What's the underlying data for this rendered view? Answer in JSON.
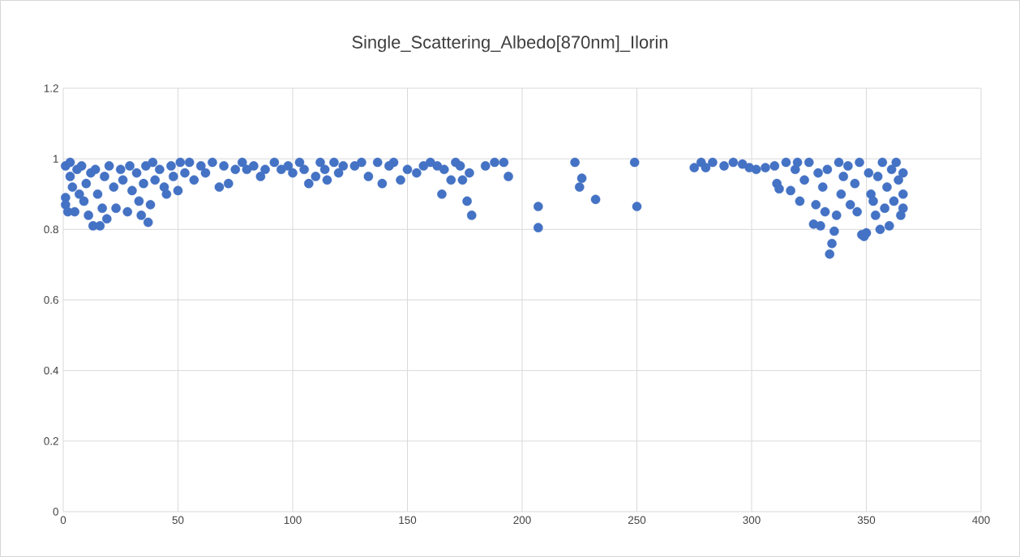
{
  "chart_data": {
    "type": "scatter",
    "title": "Single_Scattering_Albedo[870nm]_Ilorin",
    "xlim": [
      0,
      400
    ],
    "xticks": [
      0,
      50,
      100,
      150,
      200,
      250,
      300,
      350,
      400
    ],
    "ylim": [
      0,
      1.2
    ],
    "yticks": [
      0,
      0.2,
      0.4,
      0.6,
      0.8,
      1,
      1.2
    ],
    "grid": true,
    "marker": "circle",
    "series": [
      {
        "color": "#4472c4",
        "x": [
          1,
          1,
          1,
          2,
          3,
          3,
          4,
          5,
          6,
          7,
          8,
          9,
          10,
          11,
          12,
          13,
          14,
          15,
          16,
          17,
          18,
          19,
          20,
          22,
          23,
          25,
          26,
          28,
          29,
          30,
          32,
          33,
          34,
          35,
          36,
          37,
          38,
          39,
          40,
          42,
          44,
          45,
          47,
          48,
          50,
          51,
          53,
          55,
          57,
          60,
          62,
          65,
          68,
          70,
          72,
          75,
          78,
          80,
          83,
          86,
          88,
          92,
          95,
          98,
          100,
          103,
          105,
          107,
          110,
          112,
          114,
          115,
          118,
          120,
          122,
          127,
          130,
          133,
          137,
          139,
          142,
          144,
          147,
          150,
          154,
          157,
          160,
          163,
          165,
          166,
          169,
          171,
          173,
          174,
          176,
          177,
          178,
          184,
          188,
          192,
          194,
          207,
          207,
          223,
          225,
          226,
          232,
          249,
          250,
          275,
          278,
          280,
          283,
          288,
          292,
          296,
          299,
          302,
          306,
          310,
          311,
          312,
          315,
          317,
          319,
          320,
          321,
          323,
          325,
          327,
          328,
          329,
          330,
          331,
          332,
          333,
          334,
          335,
          336,
          337,
          338,
          339,
          340,
          342,
          343,
          345,
          346,
          347,
          348,
          349,
          350,
          351,
          352,
          353,
          354,
          355,
          356,
          357,
          358,
          359,
          360,
          361,
          362,
          363,
          364,
          365,
          366,
          366,
          366
        ],
        "values": [
          0.98,
          0.89,
          0.87,
          0.85,
          0.95,
          0.99,
          0.92,
          0.85,
          0.97,
          0.9,
          0.98,
          0.88,
          0.93,
          0.84,
          0.96,
          0.81,
          0.97,
          0.9,
          0.81,
          0.86,
          0.95,
          0.83,
          0.98,
          0.92,
          0.86,
          0.97,
          0.94,
          0.85,
          0.98,
          0.91,
          0.96,
          0.88,
          0.84,
          0.93,
          0.98,
          0.82,
          0.87,
          0.99,
          0.94,
          0.97,
          0.92,
          0.9,
          0.98,
          0.95,
          0.91,
          0.99,
          0.96,
          0.99,
          0.94,
          0.98,
          0.96,
          0.99,
          0.92,
          0.98,
          0.93,
          0.97,
          0.99,
          0.97,
          0.98,
          0.95,
          0.97,
          0.99,
          0.97,
          0.98,
          0.96,
          0.99,
          0.97,
          0.93,
          0.95,
          0.99,
          0.97,
          0.94,
          0.99,
          0.96,
          0.98,
          0.98,
          0.99,
          0.95,
          0.99,
          0.93,
          0.98,
          0.99,
          0.94,
          0.97,
          0.96,
          0.98,
          0.99,
          0.98,
          0.9,
          0.97,
          0.94,
          0.99,
          0.98,
          0.94,
          0.88,
          0.96,
          0.84,
          0.98,
          0.99,
          0.99,
          0.95,
          0.865,
          0.805,
          0.99,
          0.92,
          0.945,
          0.885,
          0.99,
          0.865,
          0.975,
          0.99,
          0.975,
          0.99,
          0.98,
          0.99,
          0.985,
          0.975,
          0.97,
          0.975,
          0.98,
          0.93,
          0.915,
          0.99,
          0.91,
          0.97,
          0.99,
          0.88,
          0.94,
          0.99,
          0.815,
          0.87,
          0.96,
          0.81,
          0.92,
          0.85,
          0.97,
          0.73,
          0.76,
          0.795,
          0.84,
          0.99,
          0.9,
          0.95,
          0.98,
          0.87,
          0.93,
          0.85,
          0.99,
          0.785,
          0.78,
          0.79,
          0.96,
          0.9,
          0.88,
          0.84,
          0.95,
          0.8,
          0.99,
          0.86,
          0.92,
          0.81,
          0.97,
          0.88,
          0.99,
          0.94,
          0.84,
          0.96,
          0.9,
          0.86
        ]
      }
    ]
  }
}
